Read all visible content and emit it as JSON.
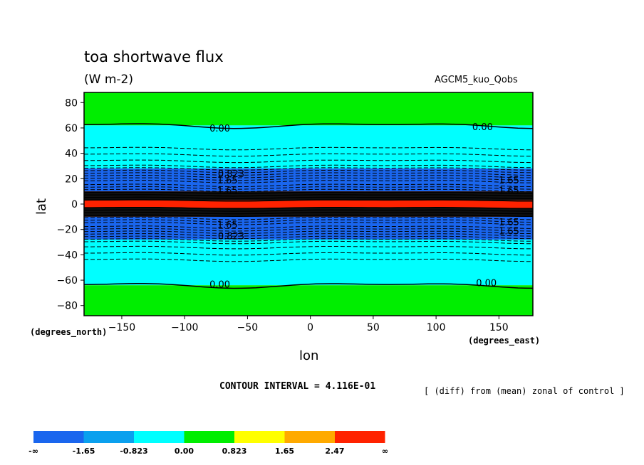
{
  "title": "toa shortwave flux",
  "units": "(W m-2)",
  "model": "AGCM5_kuo_Qobs",
  "xlabel": "lon",
  "ylabel": "lat",
  "x_unit": "(degrees_east)",
  "y_unit": "(degrees_north)",
  "contour_interval": "CONTOUR INTERVAL = 4.116E-01",
  "diff_note": "[ (diff) from (mean) zonal of control ]",
  "chart_data": {
    "type": "heatmap",
    "title": "toa shortwave flux",
    "xlabel": "lon",
    "ylabel": "lat",
    "xlim": [
      -180,
      177
    ],
    "ylim": [
      -88,
      88
    ],
    "xticks": [
      -150,
      -100,
      -50,
      0,
      50,
      100,
      150
    ],
    "yticks": [
      -80,
      -60,
      -40,
      -20,
      0,
      20,
      40,
      60,
      80
    ],
    "colorbar": {
      "labels": [
        "-∞",
        "-1.65",
        "-0.823",
        "0.00",
        "0.823",
        "1.65",
        "2.47",
        "∞"
      ],
      "colors": [
        "#1a66ee",
        "#0aa0ee",
        "#00ffff",
        "#00ee00",
        "#ffff00",
        "#ffaa00",
        "#ff2200"
      ]
    },
    "bands": [
      {
        "lat_min": 62,
        "lat_max": 88,
        "color_index": 3
      },
      {
        "lat_min": 28,
        "lat_max": 62,
        "color_index": 2
      },
      {
        "lat_min": 10,
        "lat_max": 28,
        "color_index": 0
      },
      {
        "lat_min": -10,
        "lat_max": 10,
        "color_index": 6
      },
      {
        "lat_min": -28,
        "lat_max": -10,
        "color_index": 0
      },
      {
        "lat_min": -64,
        "lat_max": -28,
        "color_index": 2
      },
      {
        "lat_min": -88,
        "lat_max": -64,
        "color_index": 3
      }
    ],
    "contour_labels": [
      {
        "text": "0.00",
        "lon": -72,
        "lat": 60
      },
      {
        "text": "0.00",
        "lon": 137,
        "lat": 61
      },
      {
        "text": "0.00",
        "lon": -72,
        "lat": -63
      },
      {
        "text": "0.00",
        "lon": 140,
        "lat": -62
      },
      {
        "text": "0.823",
        "lon": -63,
        "lat": 24
      },
      {
        "text": "1.65",
        "lon": -66,
        "lat": 19
      },
      {
        "text": "1.65",
        "lon": -66,
        "lat": 11
      },
      {
        "text": "1.65",
        "lon": 158,
        "lat": 19
      },
      {
        "text": "1.65",
        "lon": 158,
        "lat": 11
      },
      {
        "text": "1.65",
        "lon": -66,
        "lat": -16
      },
      {
        "text": "1.65",
        "lon": 158,
        "lat": -14
      },
      {
        "text": "1.65",
        "lon": 158,
        "lat": -21
      },
      {
        "text": "0.823",
        "lon": -63,
        "lat": -25
      }
    ]
  }
}
